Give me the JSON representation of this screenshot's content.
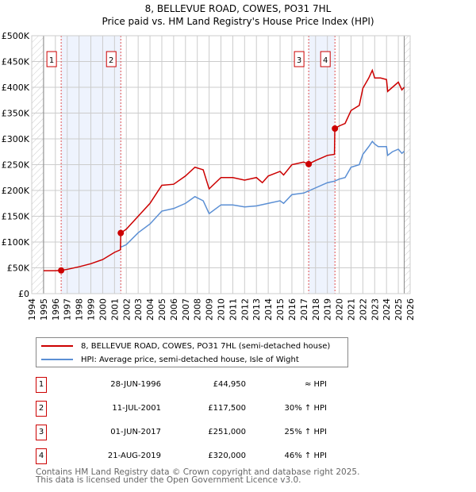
{
  "title": "8, BELLEVUE ROAD, COWES, PO31 7HL",
  "subtitle": "Price paid vs. HM Land Registry's House Price Index (HPI)",
  "chart_data": {
    "type": "line",
    "title": "8, BELLEVUE ROAD, COWES, PO31 7HL — Price paid vs. HM Land Registry's House Price Index (HPI)",
    "xlim": [
      1994,
      2026
    ],
    "ylim": [
      0,
      500000
    ],
    "x_ticks": [
      "1994",
      "1995",
      "1996",
      "1997",
      "1998",
      "1999",
      "2000",
      "2001",
      "2002",
      "2003",
      "2004",
      "2005",
      "2006",
      "2007",
      "2008",
      "2009",
      "2010",
      "2011",
      "2012",
      "2013",
      "2014",
      "2015",
      "2016",
      "2017",
      "2018",
      "2019",
      "2020",
      "2021",
      "2022",
      "2023",
      "2024",
      "2025",
      "2026"
    ],
    "y_ticks": [
      "£0",
      "£50K",
      "£100K",
      "£150K",
      "£200K",
      "£250K",
      "£300K",
      "£350K",
      "£400K",
      "£450K",
      "£500K"
    ],
    "grid": true,
    "series": [
      {
        "name": "8, BELLEVUE ROAD, COWES, PO31 7HL (semi-detached house)",
        "color": "#cc0000",
        "x": [
          1995,
          1996,
          1996.5,
          1997,
          1998,
          1999,
          2000,
          2001,
          2001.5,
          2001.53,
          2002,
          2003,
          2004,
          2005,
          2006,
          2007,
          2007.8,
          2008.5,
          2009,
          2010,
          2011,
          2012,
          2013,
          2013.5,
          2014,
          2015,
          2015.3,
          2016,
          2017,
          2017.4,
          2018,
          2019,
          2019.6,
          2019.63,
          2020,
          2020.5,
          2021,
          2021.7,
          2022,
          2022.5,
          2022.8,
          2023,
          2023.5,
          2024,
          2024.1,
          2024.5,
          2025,
          2025.3,
          2025.5
        ],
        "y": [
          44500,
          44500,
          45000,
          47000,
          52000,
          58000,
          66000,
          80000,
          85000,
          117500,
          125000,
          150000,
          175000,
          210000,
          212000,
          228000,
          245000,
          240000,
          203000,
          225000,
          225000,
          220000,
          225000,
          215000,
          228000,
          237000,
          230000,
          250000,
          255000,
          251000,
          258000,
          268000,
          270000,
          320000,
          325000,
          330000,
          355000,
          365000,
          398000,
          418000,
          433000,
          418000,
          418000,
          415000,
          392000,
          400000,
          410000,
          395000,
          400000
        ]
      },
      {
        "name": "HPI: Average price, semi-detached house, Isle of Wight",
        "color": "#5b8fd4",
        "x": [
          2001.53,
          2002,
          2003,
          2004,
          2005,
          2006,
          2007,
          2007.8,
          2008.5,
          2009,
          2010,
          2011,
          2012,
          2013,
          2014,
          2015,
          2015.3,
          2016,
          2017,
          2018,
          2019,
          2019.6,
          2020,
          2020.5,
          2021,
          2021.7,
          2022,
          2022.5,
          2022.8,
          2023,
          2023.3,
          2024,
          2024.1,
          2024.5,
          2025,
          2025.3,
          2025.5
        ],
        "y": [
          90000,
          95000,
          118000,
          135000,
          160000,
          165000,
          175000,
          188000,
          180000,
          155000,
          172000,
          172000,
          168000,
          170000,
          175000,
          180000,
          175000,
          192000,
          195000,
          205000,
          215000,
          218000,
          222000,
          225000,
          245000,
          250000,
          270000,
          285000,
          295000,
          290000,
          285000,
          285000,
          268000,
          275000,
          280000,
          272000,
          276000
        ]
      }
    ],
    "sales": [
      {
        "n": "1",
        "date": "28-JUN-1996",
        "x": 1996.49,
        "price": "£44,950",
        "value": 44950,
        "hpi": "≈ HPI"
      },
      {
        "n": "2",
        "date": "11-JUL-2001",
        "x": 2001.53,
        "price": "£117,500",
        "value": 117500,
        "hpi": "30% ↑ HPI"
      },
      {
        "n": "3",
        "date": "01-JUN-2017",
        "x": 2017.42,
        "price": "£251,000",
        "value": 251000,
        "hpi": "25% ↑ HPI"
      },
      {
        "n": "4",
        "date": "21-AUG-2019",
        "x": 2019.64,
        "price": "£320,000",
        "value": 320000,
        "hpi": "46% ↑ HPI"
      }
    ]
  },
  "legend": {
    "property": "8, BELLEVUE ROAD, COWES, PO31 7HL (semi-detached house)",
    "hpi": "HPI: Average price, semi-detached house, Isle of Wight"
  },
  "footer": {
    "line1": "Contains HM Land Registry data © Crown copyright and database right 2025.",
    "line2": "This data is licensed under the Open Government Licence v3.0."
  }
}
